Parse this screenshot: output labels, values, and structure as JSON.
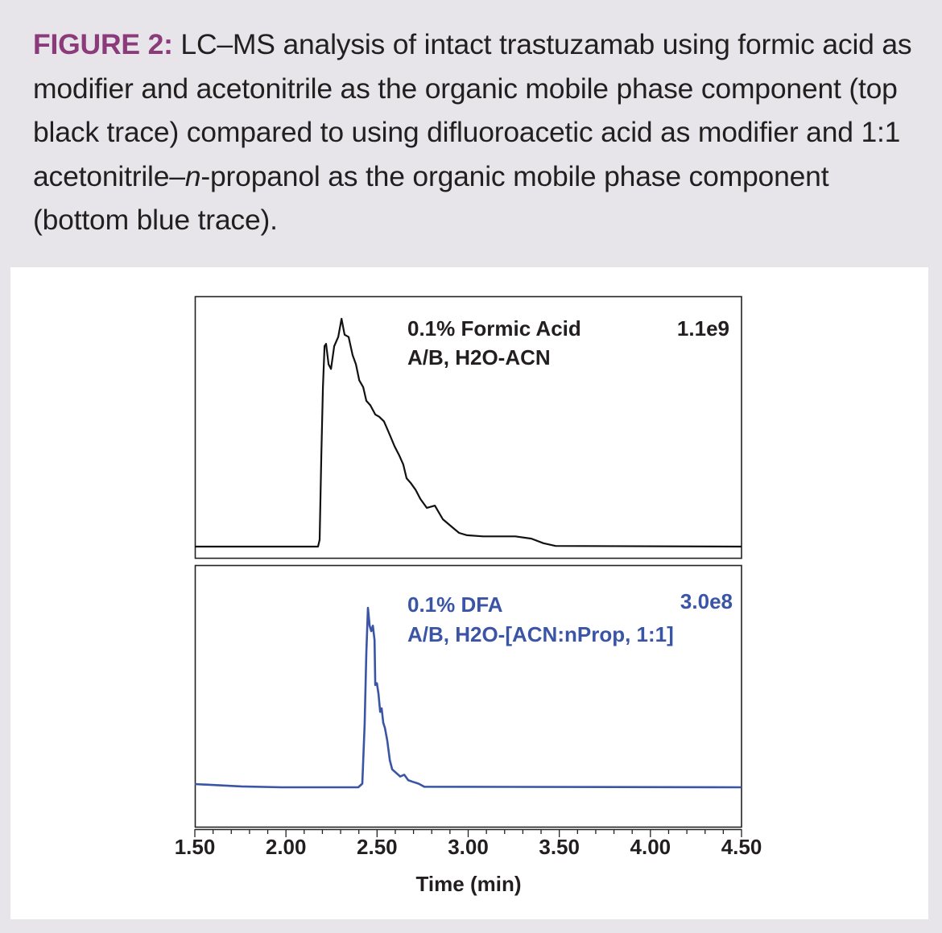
{
  "caption": {
    "figure_label": "FIGURE 2:",
    "text_part1": " LC–MS analysis of intact trastuzamab using formic acid as modifier and acetonitrile as the organic mobile phase component (top black trace) compared to using difluoroacetic acid as modifier and 1:1 acetonitrile–",
    "italic": "n",
    "text_part2": "-propanol as the organic mobile phase component (bottom blue trace)."
  },
  "colors": {
    "figure_label": "#8b3a7a",
    "top_trace": "#111111",
    "bottom_trace": "#3a55a6",
    "background": "#e7e5ea",
    "panel": "#ffffff"
  },
  "chart_data": {
    "type": "line",
    "title": "LC–MS analysis of intact trastuzamab",
    "xlabel": "Time (min)",
    "ylabel": "",
    "xlim": [
      1.5,
      4.5
    ],
    "x_ticks": [
      "1.50",
      "2.00",
      "2.50",
      "3.00",
      "3.50",
      "4.00",
      "4.50"
    ],
    "minor_tick_step": 0.1,
    "grid": false,
    "legend_position": "in-panel annotations",
    "panels": [
      {
        "id": "top",
        "label_line1": "0.1% Formic Acid",
        "label_line2": "A/B, H2O-ACN",
        "max_intensity_label": "1.1e9",
        "color": "#111111",
        "y_unit": "relative intensity (%) of 1.1e9",
        "x": [
          1.5,
          2.176,
          2.185,
          2.194,
          2.203,
          2.212,
          2.22,
          2.234,
          2.247,
          2.265,
          2.287,
          2.305,
          2.322,
          2.344,
          2.366,
          2.384,
          2.402,
          2.424,
          2.441,
          2.463,
          2.49,
          2.512,
          2.538,
          2.565,
          2.596,
          2.622,
          2.644,
          2.662,
          2.684,
          2.711,
          2.737,
          2.773,
          2.817,
          2.861,
          2.905,
          2.95,
          2.994,
          3.082,
          3.17,
          3.259,
          3.347,
          3.413,
          3.48,
          4.5
        ],
        "y": [
          0,
          0,
          3,
          40,
          70,
          88,
          89,
          80,
          78,
          88,
          92,
          100,
          93,
          92,
          84,
          80,
          73,
          70,
          64,
          62,
          58,
          57,
          55,
          50,
          44,
          40,
          36,
          30,
          28,
          25,
          21,
          17,
          18,
          12,
          9,
          6,
          5,
          4.5,
          4.5,
          4.5,
          3.5,
          1.5,
          0.3,
          0
        ]
      },
      {
        "id": "bottom",
        "label_line1": "0.1% DFA",
        "label_line2": "A/B, H2O-[ACN:nProp, 1:1]",
        "max_intensity_label": "3.0e8",
        "color": "#3a55a6",
        "y_unit": "relative intensity (%) of 3.0e8",
        "x": [
          1.5,
          1.756,
          1.977,
          2.397,
          2.419,
          2.432,
          2.441,
          2.45,
          2.459,
          2.468,
          2.477,
          2.486,
          2.49,
          2.499,
          2.508,
          2.517,
          2.525,
          2.534,
          2.543,
          2.556,
          2.57,
          2.583,
          2.605,
          2.627,
          2.649,
          2.671,
          2.698,
          2.728,
          2.759,
          4.5
        ],
        "y": [
          1.8,
          0.5,
          0,
          0,
          2,
          35,
          75,
          100,
          90,
          87,
          90,
          82,
          57,
          58,
          52,
          42,
          44,
          36,
          33,
          26,
          15,
          10,
          8,
          6,
          7,
          4,
          3,
          2,
          0.3,
          0
        ]
      }
    ]
  }
}
